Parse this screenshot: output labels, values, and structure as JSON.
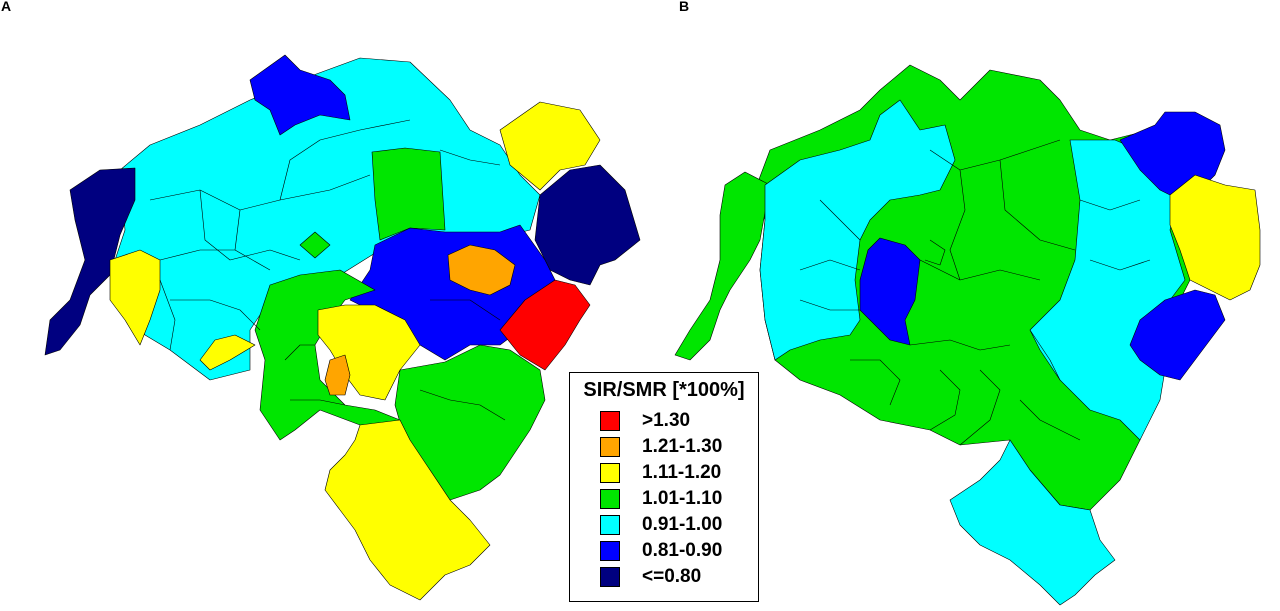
{
  "panels": [
    {
      "label": "A"
    },
    {
      "label": "B"
    }
  ],
  "legend": {
    "title": "SIR/SMR [*100%]",
    "classes": [
      {
        "label": ">1.30",
        "color": "#ff0000"
      },
      {
        "label": "1.21-1.30",
        "color": "#ffa500"
      },
      {
        "label": "1.11-1.20",
        "color": "#ffff00"
      },
      {
        "label": "1.01-1.10",
        "color": "#00e600"
      },
      {
        "label": "0.91-1.00",
        "color": "#00ffff"
      },
      {
        "label": "0.81-0.90",
        "color": "#0000ff"
      },
      {
        "label": "<=0.80",
        "color": "#000080"
      }
    ]
  }
}
